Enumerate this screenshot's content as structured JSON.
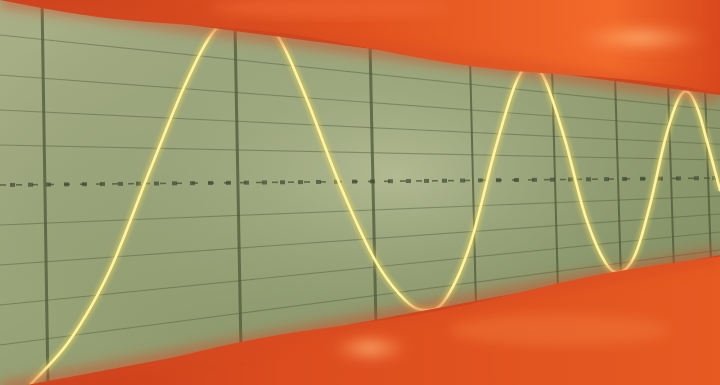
{
  "scene": {
    "subject": "",
    "colors": {
      "screen_light": "#a3ab82",
      "screen_mid": "#8f9a70",
      "screen_dark": "#6f7b52",
      "grid_line": "#4a5236",
      "trace_core": "#fff3a8",
      "trace_glow": "#e8d95a",
      "bezel_orange": "#e8521e",
      "bezel_red": "#c93a1a",
      "bezel_highlight": "#ff9a5a"
    },
    "icons": [
      "sine-wave-trace",
      "grid-lines",
      "orange-glow-bezel"
    ]
  }
}
